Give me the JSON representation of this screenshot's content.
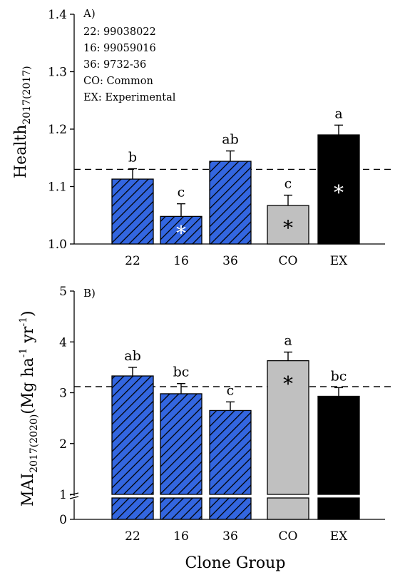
{
  "chart_data": [
    {
      "type": "bar",
      "panel_label": "A)",
      "categories": [
        "22",
        "16",
        "36",
        "CO",
        "EX"
      ],
      "values": [
        1.113,
        1.048,
        1.144,
        1.067,
        1.19
      ],
      "errors": [
        0.018,
        0.022,
        0.018,
        0.018,
        0.017
      ],
      "letters": [
        "b",
        "c",
        "ab",
        "c",
        "a"
      ],
      "asterisk": [
        false,
        true,
        false,
        true,
        true
      ],
      "reference_line": 1.13,
      "ylabel_main": "Health",
      "ylabel_sub": "2017(2017)",
      "ylim": [
        1.0,
        1.4
      ],
      "yticks": [
        "1.0",
        "1.1",
        "1.2",
        "1.3",
        "1.4"
      ],
      "legend_lines": [
        "22: 99038022",
        "16: 99059016",
        "36: 9732-36",
        "CO: Common",
        "EX: Experimental"
      ],
      "fills": [
        "hatch",
        "hatch",
        "hatch",
        "gray",
        "black"
      ]
    },
    {
      "type": "bar",
      "panel_label": "B)",
      "categories": [
        "22",
        "16",
        "36",
        "CO",
        "EX"
      ],
      "values": [
        3.33,
        2.98,
        2.65,
        3.63,
        2.93
      ],
      "errors": [
        0.17,
        0.2,
        0.17,
        0.17,
        0.17
      ],
      "letters": [
        "ab",
        "bc",
        "c",
        "a",
        "bc"
      ],
      "asterisk": [
        false,
        false,
        false,
        true,
        false
      ],
      "reference_line": 3.12,
      "ylabel_main": "MAI",
      "ylabel_sub": "2017(2020)",
      "ylabel_unit": "(Mg ha",
      "ylabel_unit_sup1": "-1",
      "ylabel_unit_mid": " yr",
      "ylabel_unit_sup2": "-1",
      "ylabel_unit_end": ")",
      "ylim": [
        0,
        5
      ],
      "axis_break": [
        0.0,
        1.0
      ],
      "yticks": [
        "0",
        "1",
        "2",
        "3",
        "4",
        "5"
      ],
      "xlabel": "Clone Group",
      "fills": [
        "hatch",
        "hatch",
        "hatch",
        "gray",
        "black"
      ]
    }
  ],
  "colors": {
    "hatch_fill": "#3366e0",
    "gray": "#c0c0c0",
    "black": "#000000"
  }
}
